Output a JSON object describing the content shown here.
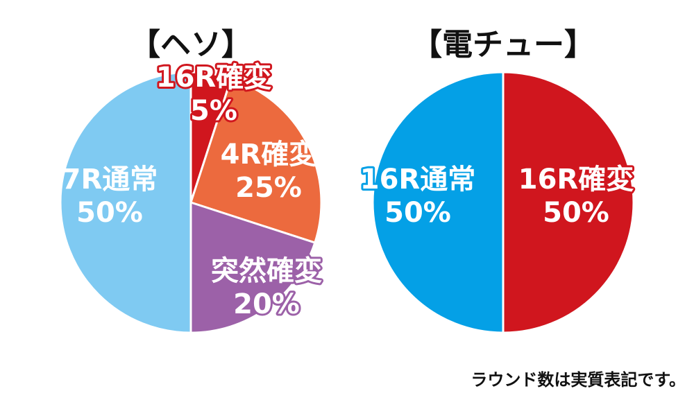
{
  "chart_data": [
    {
      "type": "pie",
      "title": "【ヘソ】",
      "slices": [
        {
          "label": "16R確変",
          "value": 5,
          "value_label": "5%",
          "color": "#d0161e",
          "text_fill": "#ffffff",
          "text_stroke": "#d0161e"
        },
        {
          "label": "4R確変",
          "value": 25,
          "value_label": "25%",
          "color": "#ec6a3e",
          "text_fill": "#ffffff",
          "text_stroke": "none"
        },
        {
          "label": "突然確変",
          "value": 20,
          "value_label": "20%",
          "color": "#9c61a8",
          "text_fill": "#ffffff",
          "text_stroke": "#9c61a8"
        },
        {
          "label": "7R通常",
          "value": 50,
          "value_label": "50%",
          "color": "#7fcaf2",
          "text_fill": "#ffffff",
          "text_stroke": "none"
        }
      ]
    },
    {
      "type": "pie",
      "title": "【電チュー】",
      "slices": [
        {
          "label": "16R確変",
          "value": 50,
          "value_label": "50%",
          "color": "#d0161e",
          "text_fill": "#ffffff",
          "text_stroke": "#d0161e"
        },
        {
          "label": "16R通常",
          "value": 50,
          "value_label": "50%",
          "color": "#04a0e6",
          "text_fill": "#ffffff",
          "text_stroke": "#04a0e6"
        }
      ]
    }
  ],
  "footnote": "ラウンド数は実質表記です。"
}
